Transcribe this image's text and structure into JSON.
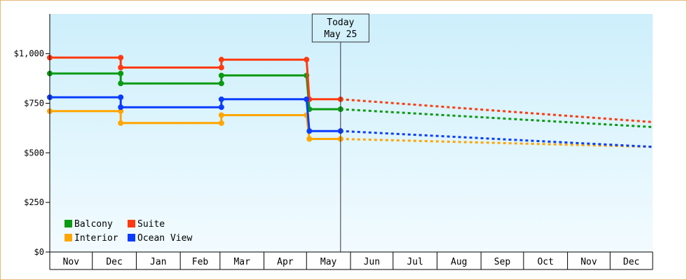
{
  "chart_data": {
    "type": "line",
    "x_axis": {
      "ticks": [
        "Nov",
        "Dec",
        "Jan",
        "Feb",
        "Mar",
        "Apr",
        "May",
        "Jun",
        "Jul",
        "Aug",
        "Sep",
        "Oct",
        "Nov",
        "Dec"
      ],
      "range": [
        "2024-11-01",
        "2025-12-31"
      ]
    },
    "y_axis": {
      "ticks": [
        "$0",
        "$250",
        "$500",
        "$750",
        "$1,000"
      ],
      "tick_values": [
        0,
        250,
        500,
        750,
        1000
      ],
      "range": [
        0,
        1200
      ]
    },
    "today_marker": {
      "line1": "Today",
      "line2": "May 25",
      "date": "2025-05-25"
    },
    "legend_position": "bottom-left",
    "series": [
      {
        "name": "Balcony",
        "color": "#0a9a12",
        "history": [
          [
            "2024-11-01",
            900
          ],
          [
            "2024-12-21",
            900
          ],
          [
            "2024-12-21",
            850
          ],
          [
            "2025-03-02",
            850
          ],
          [
            "2025-03-02",
            890
          ],
          [
            "2025-05-01",
            890
          ],
          [
            "2025-05-03",
            720
          ],
          [
            "2025-05-25",
            720
          ]
        ],
        "forecast": [
          [
            "2025-05-25",
            720
          ],
          [
            "2025-12-31",
            630
          ]
        ]
      },
      {
        "name": "Suite",
        "color": "#ff3a10",
        "history": [
          [
            "2024-11-01",
            980
          ],
          [
            "2024-12-21",
            980
          ],
          [
            "2024-12-21",
            930
          ],
          [
            "2025-03-02",
            930
          ],
          [
            "2025-03-02",
            970
          ],
          [
            "2025-05-01",
            970
          ],
          [
            "2025-05-03",
            770
          ],
          [
            "2025-05-25",
            770
          ]
        ],
        "forecast": [
          [
            "2025-05-25",
            770
          ],
          [
            "2025-12-31",
            655
          ]
        ]
      },
      {
        "name": "Interior",
        "color": "#ffa500",
        "history": [
          [
            "2024-11-01",
            710
          ],
          [
            "2024-12-21",
            710
          ],
          [
            "2024-12-21",
            650
          ],
          [
            "2025-03-02",
            650
          ],
          [
            "2025-03-02",
            690
          ],
          [
            "2025-05-01",
            690
          ],
          [
            "2025-05-03",
            570
          ],
          [
            "2025-05-25",
            570
          ]
        ],
        "forecast": [
          [
            "2025-05-25",
            570
          ],
          [
            "2025-12-31",
            530
          ]
        ]
      },
      {
        "name": "Ocean View",
        "color": "#0a3cff",
        "history": [
          [
            "2024-11-01",
            780
          ],
          [
            "2024-12-21",
            780
          ],
          [
            "2024-12-21",
            730
          ],
          [
            "2025-03-02",
            730
          ],
          [
            "2025-03-02",
            770
          ],
          [
            "2025-05-01",
            770
          ],
          [
            "2025-05-03",
            610
          ],
          [
            "2025-05-25",
            610
          ]
        ],
        "forecast": [
          [
            "2025-05-25",
            610
          ],
          [
            "2025-12-31",
            530
          ]
        ]
      }
    ]
  }
}
